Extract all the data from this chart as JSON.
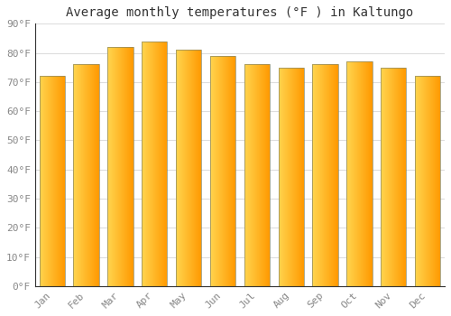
{
  "title": "Average monthly temperatures (°F ) in Kaltungo",
  "months": [
    "Jan",
    "Feb",
    "Mar",
    "Apr",
    "May",
    "Jun",
    "Jul",
    "Aug",
    "Sep",
    "Oct",
    "Nov",
    "Dec"
  ],
  "values": [
    72,
    76,
    82,
    84,
    81,
    79,
    76,
    75,
    76,
    77,
    75,
    72
  ],
  "bar_color_left": "#FFD54F",
  "bar_color_right": "#FFA000",
  "bar_edge_color": "#888866",
  "background_color": "#FFFFFF",
  "grid_color": "#DDDDDD",
  "ylim": [
    0,
    90
  ],
  "yticks": [
    0,
    10,
    20,
    30,
    40,
    50,
    60,
    70,
    80,
    90
  ],
  "ytick_labels": [
    "0°F",
    "10°F",
    "20°F",
    "30°F",
    "40°F",
    "50°F",
    "60°F",
    "70°F",
    "80°F",
    "90°F"
  ],
  "title_fontsize": 10,
  "tick_fontsize": 8,
  "font_family": "monospace",
  "bar_width": 0.75
}
